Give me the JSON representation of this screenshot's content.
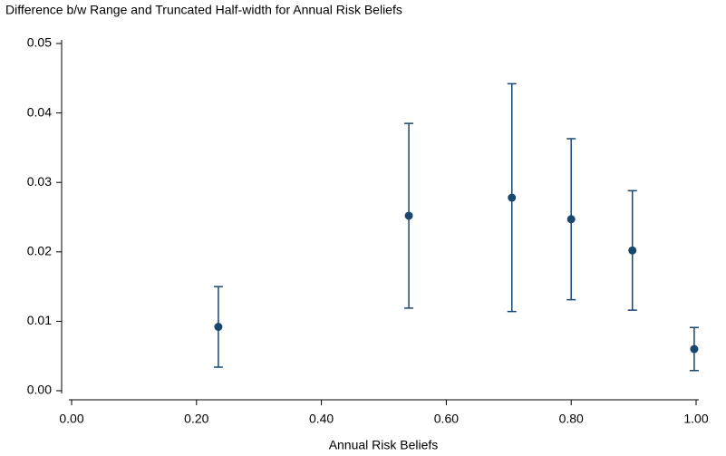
{
  "chart_data": {
    "type": "errorbar",
    "title": "Difference b/w Range and Truncated Half-width for Annual Risk Beliefs",
    "x_label": "Annual Risk Beliefs",
    "x": [
      0.235,
      0.54,
      0.705,
      0.8,
      0.898,
      0.997
    ],
    "values": [
      0.0092,
      0.0252,
      0.0278,
      0.0247,
      0.0202,
      0.006
    ],
    "errors": [
      0.0058,
      0.0133,
      0.0164,
      0.0116,
      0.0086,
      0.0031
    ],
    "color": "#1a476f",
    "xlim": [
      0,
      1
    ],
    "ylim": [
      0,
      0.05
    ],
    "xticks": [
      {
        "value": 0,
        "label": "0.00"
      },
      {
        "value": 0.2,
        "label": "0.20"
      },
      {
        "value": 0.4,
        "label": "0.40"
      },
      {
        "value": 0.6,
        "label": "0.60"
      },
      {
        "value": 0.8,
        "label": "0.80"
      },
      {
        "value": 1,
        "label": "1.00"
      }
    ],
    "yticks": [
      {
        "value": 0,
        "label": "0.00"
      },
      {
        "value": 0.01,
        "label": "0.01"
      },
      {
        "value": 0.02,
        "label": "0.02"
      },
      {
        "value": 0.03,
        "label": "0.03"
      },
      {
        "value": 0.04,
        "label": "0.04"
      },
      {
        "value": 0.05,
        "label": "0.05"
      }
    ],
    "grid": false
  }
}
